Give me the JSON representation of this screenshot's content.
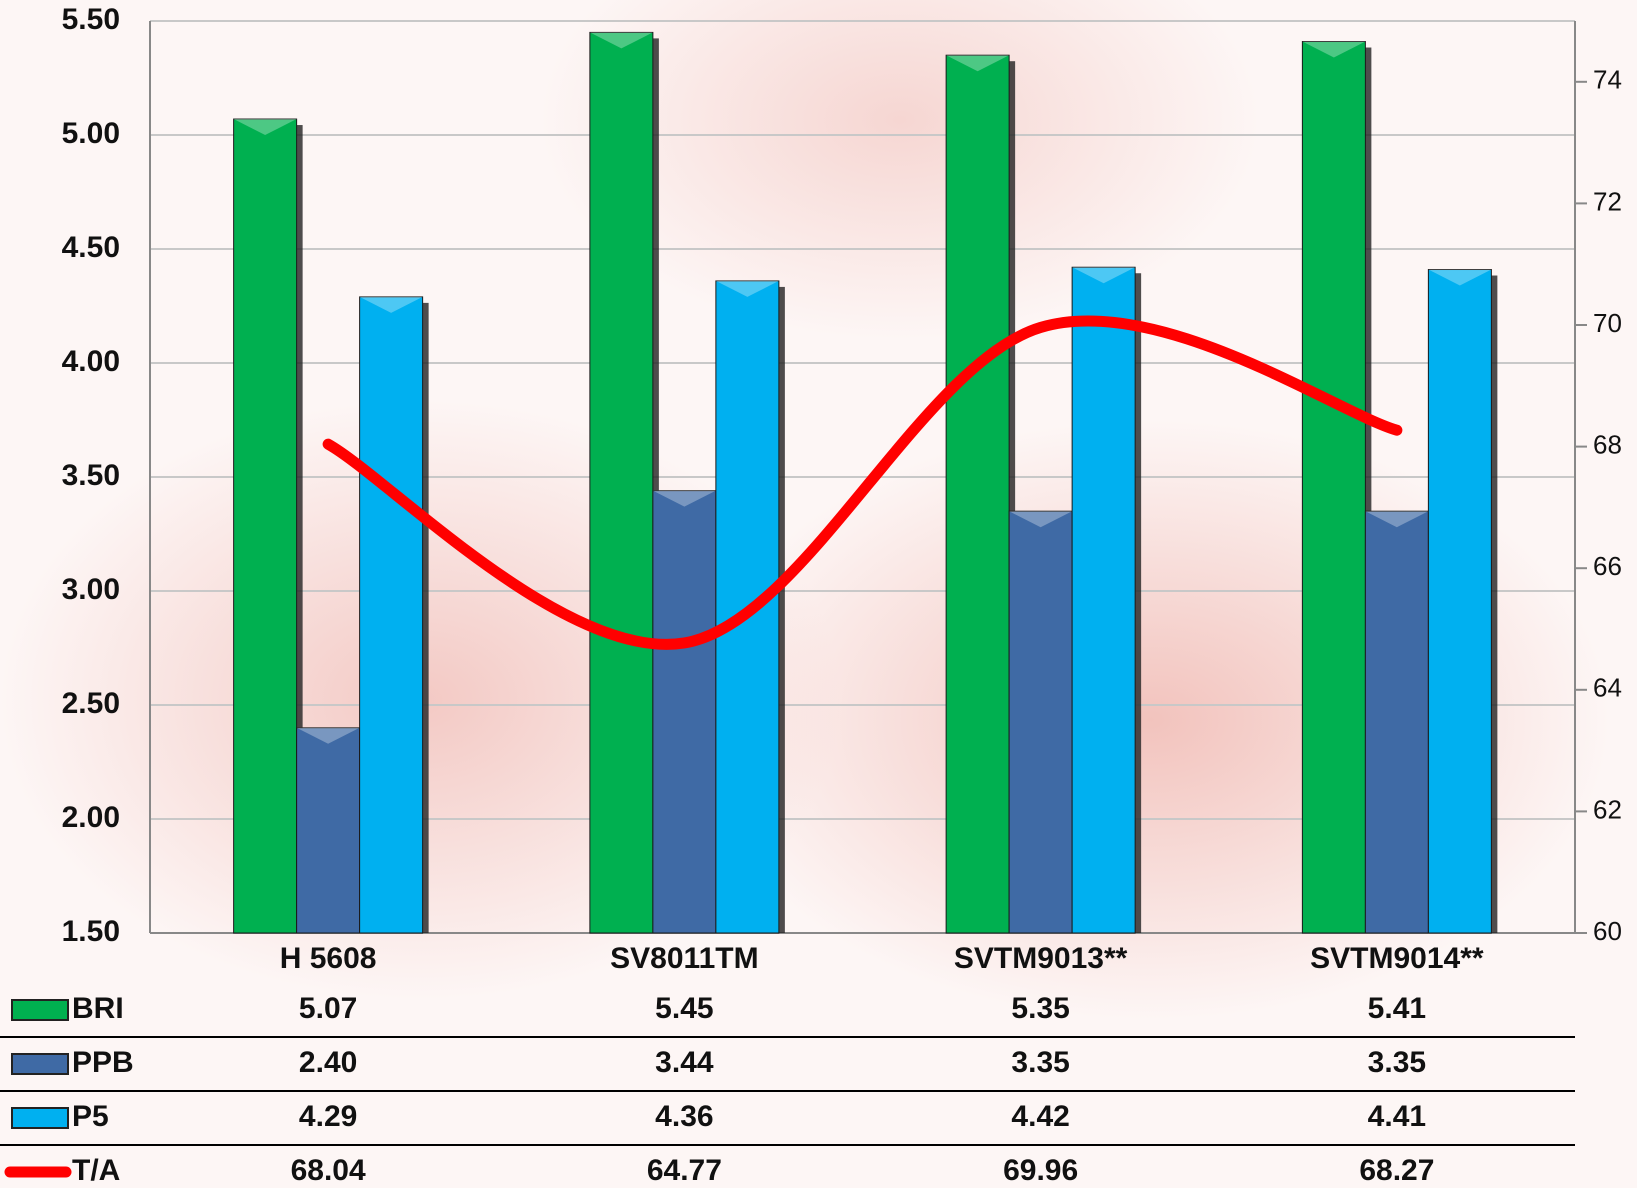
{
  "chart_data": {
    "type": "bar",
    "categories": [
      "H 5608",
      "SV8011TM",
      "SVTM9013**",
      "SVTM9014**"
    ],
    "series": [
      {
        "name": "BRI",
        "color": "#00b050",
        "values": [
          5.07,
          5.45,
          5.35,
          5.41
        ],
        "value_labels": [
          "5.07",
          "5.45",
          "5.35",
          "5.41"
        ]
      },
      {
        "name": "PPB",
        "color": "#3f6aa5",
        "values": [
          2.4,
          3.44,
          3.35,
          3.35
        ],
        "value_labels": [
          "2.40",
          "3.44",
          "3.35",
          "3.35"
        ]
      },
      {
        "name": "P5",
        "color": "#00b0f0",
        "values": [
          4.29,
          4.36,
          4.42,
          4.41
        ],
        "value_labels": [
          "4.29",
          "4.36",
          "4.42",
          "4.41"
        ]
      },
      {
        "name": "T/A",
        "color": "#ff0000",
        "type": "line",
        "axis": "y2",
        "values": [
          68.04,
          64.77,
          69.96,
          68.27
        ]
      }
    ],
    "ylim": [
      1.5,
      5.5
    ],
    "yticks": [
      {
        "value": 1.5,
        "label": "1.50"
      },
      {
        "value": 2,
        "label": "2.00"
      },
      {
        "value": 2.5,
        "label": "2.50"
      },
      {
        "value": 3,
        "label": "3.00"
      },
      {
        "value": 3.5,
        "label": "3.50"
      },
      {
        "value": 4,
        "label": "4.00"
      },
      {
        "value": 4.5,
        "label": "4.50"
      },
      {
        "value": 5,
        "label": "5.00"
      },
      {
        "value": 5.5,
        "label": "5.50"
      }
    ],
    "y2lim": [
      60,
      75
    ],
    "y2ticks": [
      60,
      62,
      64,
      66,
      68,
      70,
      72,
      74
    ],
    "grid": true
  }
}
